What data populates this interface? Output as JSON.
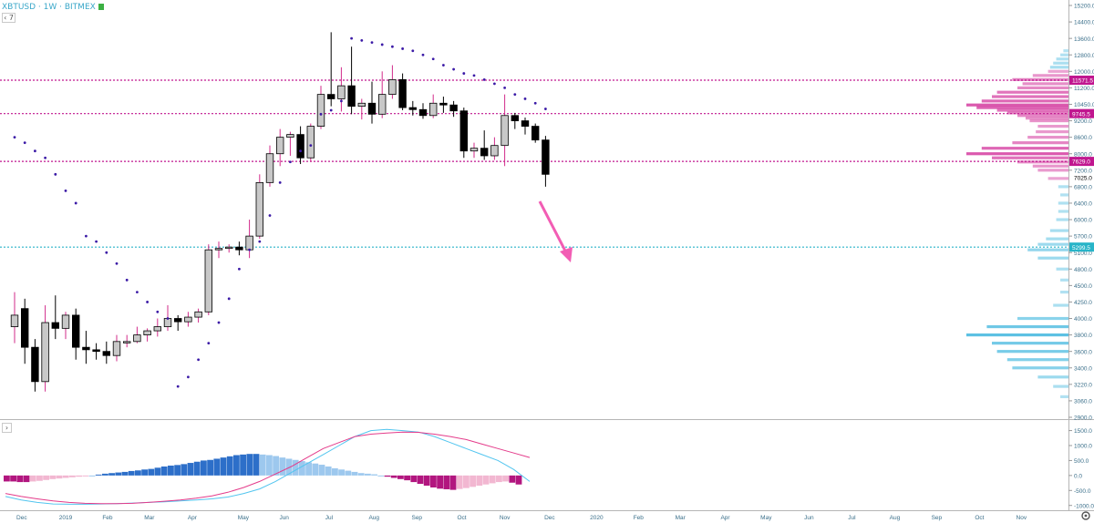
{
  "header": {
    "symbol": "XBTUSD · 1W · BITMEX",
    "collapse_label": "‹ 7",
    "flag_color": "#3cb043"
  },
  "colors": {
    "up_body": "#c8c8c8",
    "down_body": "#000000",
    "wick_up": "#d22b8a",
    "wick_down": "#000000",
    "sar": "#3b1aa6",
    "level_magenta": "#c0168f",
    "level_cyan": "#28b4c8",
    "profile_magenta": "#d2309a",
    "profile_cyan": "#34b2dc",
    "arrow": "#f25db4",
    "macd_line": "#52c5ef",
    "signal_line": "#e43b8a",
    "hist_pos_strong": "#2d6fc9",
    "hist_pos_weak": "#9dc8ee",
    "hist_neg_strong": "#b2167f",
    "hist_neg_weak": "#f2b7d1"
  },
  "chart_data": {
    "type": "candlestick",
    "price_axis": {
      "min": 2900,
      "max": 15200,
      "ticks": [
        "15200.0",
        "14400.0",
        "13600.0",
        "12800.0",
        "12000.0",
        "11200.0",
        "10450.0",
        "9200.0",
        "8600.0",
        "8000.0",
        "7200.0",
        "6800.0",
        "6400.0",
        "6000.0",
        "5700.0",
        "5100.0",
        "4800.0",
        "4500.0",
        "4250.0",
        "4000.0",
        "3800.0",
        "3600.0",
        "3400.0",
        "3220.0",
        "3060.0",
        "2900.0"
      ],
      "tick_values": [
        15200,
        14400,
        13600,
        12800,
        12000,
        11200,
        10450,
        9200,
        8600,
        8000,
        7200,
        6800,
        6400,
        6000,
        5700,
        5100,
        4800,
        4500,
        4250,
        4000,
        3800,
        3600,
        3400,
        3220,
        3060,
        2900
      ],
      "last_price": "7025.0"
    },
    "time_axis": {
      "labels": [
        "Dec",
        "2019",
        "Feb",
        "Mar",
        "Apr",
        "May",
        "Jun",
        "Jul",
        "Aug",
        "Sep",
        "Oct",
        "Nov",
        "Dec",
        "2020",
        "Feb",
        "Mar",
        "Apr",
        "May",
        "Jun",
        "Jul",
        "Aug",
        "Sep",
        "Oct",
        "Nov"
      ],
      "label_weeks": [
        -3.3,
        1,
        5.1,
        9.2,
        13.4,
        18.4,
        22.4,
        26.8,
        31.2,
        35.4,
        39.8,
        44,
        48.4,
        53,
        57.1,
        61.2,
        65.6,
        69.6,
        73.8,
        78,
        82.2,
        86.3,
        90.5,
        94.6
      ]
    },
    "candles": [
      {
        "w": -4,
        "o": 3900,
        "h": 4400,
        "c": 4050,
        "l": 3700
      },
      {
        "w": -3,
        "o": 4150,
        "h": 4300,
        "c": 3650,
        "l": 3450
      },
      {
        "w": -2,
        "o": 3650,
        "h": 3750,
        "c": 3250,
        "l": 3150
      },
      {
        "w": -1,
        "o": 3250,
        "h": 4200,
        "c": 3950,
        "l": 3150
      },
      {
        "w": 0,
        "o": 3950,
        "h": 4350,
        "c": 3880,
        "l": 3750
      },
      {
        "w": 1,
        "o": 3880,
        "h": 4100,
        "c": 4050,
        "l": 3750
      },
      {
        "w": 2,
        "o": 4050,
        "h": 4150,
        "c": 3650,
        "l": 3500
      },
      {
        "w": 3,
        "o": 3650,
        "h": 3850,
        "c": 3620,
        "l": 3450
      },
      {
        "w": 4,
        "o": 3620,
        "h": 3700,
        "c": 3600,
        "l": 3500
      },
      {
        "w": 5,
        "o": 3600,
        "h": 3720,
        "c": 3550,
        "l": 3450
      },
      {
        "w": 6,
        "o": 3550,
        "h": 3800,
        "c": 3720,
        "l": 3480
      },
      {
        "w": 7,
        "o": 3720,
        "h": 3800,
        "c": 3720,
        "l": 3650
      },
      {
        "w": 8,
        "o": 3720,
        "h": 3900,
        "c": 3800,
        "l": 3700
      },
      {
        "w": 9,
        "o": 3800,
        "h": 3880,
        "c": 3850,
        "l": 3720
      },
      {
        "w": 10,
        "o": 3850,
        "h": 4000,
        "c": 3900,
        "l": 3780
      },
      {
        "w": 11,
        "o": 3900,
        "h": 4200,
        "c": 4000,
        "l": 3850
      },
      {
        "w": 12,
        "o": 4000,
        "h": 4050,
        "c": 3960,
        "l": 3850
      },
      {
        "w": 13,
        "o": 3960,
        "h": 4100,
        "c": 4020,
        "l": 3900
      },
      {
        "w": 14,
        "o": 4020,
        "h": 4150,
        "c": 4100,
        "l": 3950
      },
      {
        "w": 15,
        "o": 4100,
        "h": 5400,
        "c": 5200,
        "l": 4050
      },
      {
        "w": 16,
        "o": 5200,
        "h": 5500,
        "c": 5250,
        "l": 5000
      },
      {
        "w": 17,
        "o": 5250,
        "h": 5400,
        "c": 5300,
        "l": 5100
      },
      {
        "w": 18,
        "o": 5300,
        "h": 5500,
        "c": 5200,
        "l": 5050
      },
      {
        "w": 19,
        "o": 5200,
        "h": 6000,
        "c": 5700,
        "l": 5000
      },
      {
        "w": 20,
        "o": 5700,
        "h": 7100,
        "c": 6900,
        "l": 5600
      },
      {
        "w": 21,
        "o": 6900,
        "h": 8300,
        "c": 8000,
        "l": 6800
      },
      {
        "w": 22,
        "o": 8000,
        "h": 8900,
        "c": 8600,
        "l": 7400
      },
      {
        "w": 23,
        "o": 8600,
        "h": 8800,
        "c": 8700,
        "l": 7900
      },
      {
        "w": 24,
        "o": 8700,
        "h": 9000,
        "c": 7800,
        "l": 7500
      },
      {
        "w": 25,
        "o": 7800,
        "h": 9100,
        "c": 9000,
        "l": 7600
      },
      {
        "w": 26,
        "o": 9000,
        "h": 11300,
        "c": 10900,
        "l": 8900
      },
      {
        "w": 27,
        "o": 10900,
        "h": 13900,
        "c": 10700,
        "l": 10300
      },
      {
        "w": 28,
        "o": 10700,
        "h": 12200,
        "c": 11300,
        "l": 9900
      },
      {
        "w": 29,
        "o": 11300,
        "h": 13200,
        "c": 10300,
        "l": 9700
      },
      {
        "w": 30,
        "o": 10300,
        "h": 10700,
        "c": 10500,
        "l": 9300
      },
      {
        "w": 31,
        "o": 10500,
        "h": 11500,
        "c": 9700,
        "l": 9100
      },
      {
        "w": 32,
        "o": 9700,
        "h": 12000,
        "c": 10900,
        "l": 9400
      },
      {
        "w": 33,
        "o": 10900,
        "h": 12300,
        "c": 11600,
        "l": 10700
      },
      {
        "w": 34,
        "o": 11600,
        "h": 11900,
        "c": 10200,
        "l": 10000
      },
      {
        "w": 35,
        "o": 10200,
        "h": 10600,
        "c": 10050,
        "l": 9600
      },
      {
        "w": 36,
        "o": 10050,
        "h": 10500,
        "c": 9600,
        "l": 9350
      },
      {
        "w": 37,
        "o": 9600,
        "h": 10900,
        "c": 10500,
        "l": 9400
      },
      {
        "w": 38,
        "o": 10500,
        "h": 10800,
        "c": 10400,
        "l": 9800
      },
      {
        "w": 39,
        "o": 10400,
        "h": 10600,
        "c": 9950,
        "l": 9500
      },
      {
        "w": 40,
        "o": 9950,
        "h": 10200,
        "c": 8100,
        "l": 7800
      },
      {
        "w": 41,
        "o": 8100,
        "h": 8400,
        "c": 8200,
        "l": 7800
      },
      {
        "w": 42,
        "o": 8200,
        "h": 8850,
        "c": 7900,
        "l": 7700
      },
      {
        "w": 43,
        "o": 7900,
        "h": 8600,
        "c": 8300,
        "l": 7700
      },
      {
        "w": 44,
        "o": 8300,
        "h": 10900,
        "c": 9600,
        "l": 7400
      },
      {
        "w": 45,
        "o": 9600,
        "h": 9800,
        "c": 9200,
        "l": 8900
      },
      {
        "w": 46,
        "o": 9200,
        "h": 9450,
        "c": 9000,
        "l": 8700
      },
      {
        "w": 47,
        "o": 9000,
        "h": 9100,
        "c": 8500,
        "l": 8400
      },
      {
        "w": 48,
        "o": 8500,
        "h": 8650,
        "c": 7100,
        "l": 6800
      }
    ],
    "parabolic_sar": [
      {
        "w": -4,
        "v": 8600
      },
      {
        "w": -3,
        "v": 8400
      },
      {
        "w": -2,
        "v": 8100
      },
      {
        "w": -1,
        "v": 7800
      },
      {
        "w": 0,
        "v": 7100
      },
      {
        "w": 1,
        "v": 6700
      },
      {
        "w": 2,
        "v": 6400
      },
      {
        "w": 3,
        "v": 5700
      },
      {
        "w": 4,
        "v": 5500
      },
      {
        "w": 5,
        "v": 5100
      },
      {
        "w": 6,
        "v": 4900
      },
      {
        "w": 7,
        "v": 4600
      },
      {
        "w": 8,
        "v": 4400
      },
      {
        "w": 9,
        "v": 4250
      },
      {
        "w": 10,
        "v": 4100
      },
      {
        "w": 11,
        "v": 4000
      },
      {
        "w": 12,
        "v": 3200
      },
      {
        "w": 13,
        "v": 3300
      },
      {
        "w": 14,
        "v": 3500
      },
      {
        "w": 15,
        "v": 3700
      },
      {
        "w": 16,
        "v": 3950
      },
      {
        "w": 17,
        "v": 4300
      },
      {
        "w": 18,
        "v": 4800
      },
      {
        "w": 19,
        "v": 5200
      },
      {
        "w": 20,
        "v": 5500
      },
      {
        "w": 21,
        "v": 6100
      },
      {
        "w": 22,
        "v": 6900
      },
      {
        "w": 23,
        "v": 7600
      },
      {
        "w": 24,
        "v": 8100
      },
      {
        "w": 25,
        "v": 8300
      },
      {
        "w": 26,
        "v": 9700
      },
      {
        "w": 27,
        "v": 10000
      },
      {
        "w": 28,
        "v": 10600
      },
      {
        "w": 29,
        "v": 13600
      },
      {
        "w": 30,
        "v": 13500
      },
      {
        "w": 31,
        "v": 13400
      },
      {
        "w": 32,
        "v": 13300
      },
      {
        "w": 33,
        "v": 13200
      },
      {
        "w": 34,
        "v": 13100
      },
      {
        "w": 35,
        "v": 13000
      },
      {
        "w": 36,
        "v": 12800
      },
      {
        "w": 37,
        "v": 12600
      },
      {
        "w": 38,
        "v": 12300
      },
      {
        "w": 39,
        "v": 12100
      },
      {
        "w": 40,
        "v": 11900
      },
      {
        "w": 41,
        "v": 11800
      },
      {
        "w": 42,
        "v": 11600
      },
      {
        "w": 43,
        "v": 11400
      },
      {
        "w": 44,
        "v": 11200
      },
      {
        "w": 45,
        "v": 10900
      },
      {
        "w": 46,
        "v": 10700
      },
      {
        "w": 47,
        "v": 10500
      },
      {
        "w": 48,
        "v": 10100
      }
    ],
    "horizontal_levels": [
      {
        "value": 11571.5,
        "label": "11571.5",
        "color": "#c0168f"
      },
      {
        "value": 9745.5,
        "label": "9745.5",
        "color": "#c0168f"
      },
      {
        "value": 7629.0,
        "label": "7629.0",
        "color": "#c0168f"
      },
      {
        "value": 5299.5,
        "label": "5299.5",
        "color": "#28b4c8"
      }
    ],
    "volume_profile": [
      {
        "p": 13000,
        "s": 0.05,
        "z": "c"
      },
      {
        "p": 12800,
        "s": 0.08,
        "z": "c"
      },
      {
        "p": 12600,
        "s": 0.12,
        "z": "c"
      },
      {
        "p": 12400,
        "s": 0.15,
        "z": "c"
      },
      {
        "p": 12200,
        "s": 0.18,
        "z": "c"
      },
      {
        "p": 12000,
        "s": 0.2,
        "z": "m"
      },
      {
        "p": 11800,
        "s": 0.35,
        "z": "m"
      },
      {
        "p": 11600,
        "s": 0.55,
        "z": "m"
      },
      {
        "p": 11400,
        "s": 0.45,
        "z": "m"
      },
      {
        "p": 11200,
        "s": 0.5,
        "z": "m"
      },
      {
        "p": 11000,
        "s": 0.7,
        "z": "m"
      },
      {
        "p": 10800,
        "s": 0.75,
        "z": "m"
      },
      {
        "p": 10600,
        "s": 0.85,
        "z": "m"
      },
      {
        "p": 10400,
        "s": 1.0,
        "z": "m"
      },
      {
        "p": 10200,
        "s": 0.9,
        "z": "m"
      },
      {
        "p": 10000,
        "s": 0.7,
        "z": "m"
      },
      {
        "p": 9800,
        "s": 0.6,
        "z": "m"
      },
      {
        "p": 9600,
        "s": 0.5,
        "z": "m"
      },
      {
        "p": 9400,
        "s": 0.42,
        "z": "m"
      },
      {
        "p": 9200,
        "s": 0.38,
        "z": "m"
      },
      {
        "p": 9000,
        "s": 0.3,
        "z": "m"
      },
      {
        "p": 8800,
        "s": 0.32,
        "z": "m"
      },
      {
        "p": 8600,
        "s": 0.4,
        "z": "m"
      },
      {
        "p": 8400,
        "s": 0.55,
        "z": "m"
      },
      {
        "p": 8200,
        "s": 0.85,
        "z": "m"
      },
      {
        "p": 8000,
        "s": 1.0,
        "z": "m"
      },
      {
        "p": 7800,
        "s": 0.75,
        "z": "m"
      },
      {
        "p": 7600,
        "s": 0.5,
        "z": "m"
      },
      {
        "p": 7400,
        "s": 0.35,
        "z": "m"
      },
      {
        "p": 7200,
        "s": 0.3,
        "z": "m"
      },
      {
        "p": 7000,
        "s": 0.2,
        "z": "m"
      },
      {
        "p": 6800,
        "s": 0.1,
        "z": "c"
      },
      {
        "p": 6600,
        "s": 0.08,
        "z": "c"
      },
      {
        "p": 6400,
        "s": 0.1,
        "z": "c"
      },
      {
        "p": 6200,
        "s": 0.1,
        "z": "c"
      },
      {
        "p": 6000,
        "s": 0.12,
        "z": "c"
      },
      {
        "p": 5800,
        "s": 0.18,
        "z": "c"
      },
      {
        "p": 5600,
        "s": 0.22,
        "z": "c"
      },
      {
        "p": 5400,
        "s": 0.3,
        "z": "c"
      },
      {
        "p": 5200,
        "s": 0.4,
        "z": "c"
      },
      {
        "p": 5000,
        "s": 0.3,
        "z": "c"
      },
      {
        "p": 4800,
        "s": 0.12,
        "z": "c"
      },
      {
        "p": 4600,
        "s": 0.08,
        "z": "c"
      },
      {
        "p": 4400,
        "s": 0.08,
        "z": "c"
      },
      {
        "p": 4200,
        "s": 0.15,
        "z": "c"
      },
      {
        "p": 4000,
        "s": 0.5,
        "z": "c"
      },
      {
        "p": 3900,
        "s": 0.8,
        "z": "c"
      },
      {
        "p": 3800,
        "s": 1.0,
        "z": "c"
      },
      {
        "p": 3700,
        "s": 0.75,
        "z": "c"
      },
      {
        "p": 3600,
        "s": 0.7,
        "z": "c"
      },
      {
        "p": 3500,
        "s": 0.6,
        "z": "c"
      },
      {
        "p": 3400,
        "s": 0.55,
        "z": "c"
      },
      {
        "p": 3300,
        "s": 0.3,
        "z": "c"
      },
      {
        "p": 3200,
        "s": 0.15,
        "z": "c"
      },
      {
        "p": 3100,
        "s": 0.08,
        "z": "c"
      }
    ],
    "macd": {
      "axis_ticks": [
        "1500.0",
        "1000.0",
        "500.0",
        "0.0",
        "-500.0",
        "-1000.0"
      ],
      "axis_values": [
        1500,
        1000,
        500,
        0,
        -500,
        -1000
      ],
      "histogram": [
        -200,
        -200,
        -220,
        -220,
        -200,
        -180,
        -150,
        -120,
        -100,
        -80,
        -60,
        -40,
        -20,
        0,
        30,
        60,
        80,
        100,
        120,
        150,
        170,
        200,
        220,
        260,
        300,
        330,
        350,
        380,
        420,
        460,
        500,
        520,
        560,
        600,
        640,
        680,
        700,
        720,
        720,
        700,
        680,
        650,
        600,
        560,
        520,
        480,
        440,
        400,
        360,
        300,
        240,
        200,
        160,
        120,
        80,
        60,
        40,
        0,
        -40,
        -80,
        -120,
        -160,
        -220,
        -280,
        -340,
        -400,
        -440,
        -460,
        -480,
        -450,
        -420,
        -380,
        -340,
        -300,
        -260,
        -220,
        -200,
        -240,
        -300
      ],
      "macd_line": [
        -700,
        -820,
        -900,
        -950,
        -960,
        -960,
        -950,
        -940,
        -920,
        -900,
        -880,
        -850,
        -820,
        -780,
        -720,
        -600,
        -450,
        -200,
        100,
        400,
        700,
        1000,
        1300,
        1500,
        1540,
        1500,
        1450,
        1300,
        1100,
        900,
        700,
        500,
        200,
        -200
      ],
      "signal_line": [
        -600,
        -700,
        -780,
        -850,
        -900,
        -930,
        -940,
        -940,
        -930,
        -900,
        -860,
        -820,
        -760,
        -680,
        -560,
        -400,
        -200,
        50,
        300,
        600,
        900,
        1100,
        1300,
        1380,
        1420,
        1450,
        1440,
        1380,
        1300,
        1200,
        1050,
        900,
        750,
        600
      ]
    }
  }
}
